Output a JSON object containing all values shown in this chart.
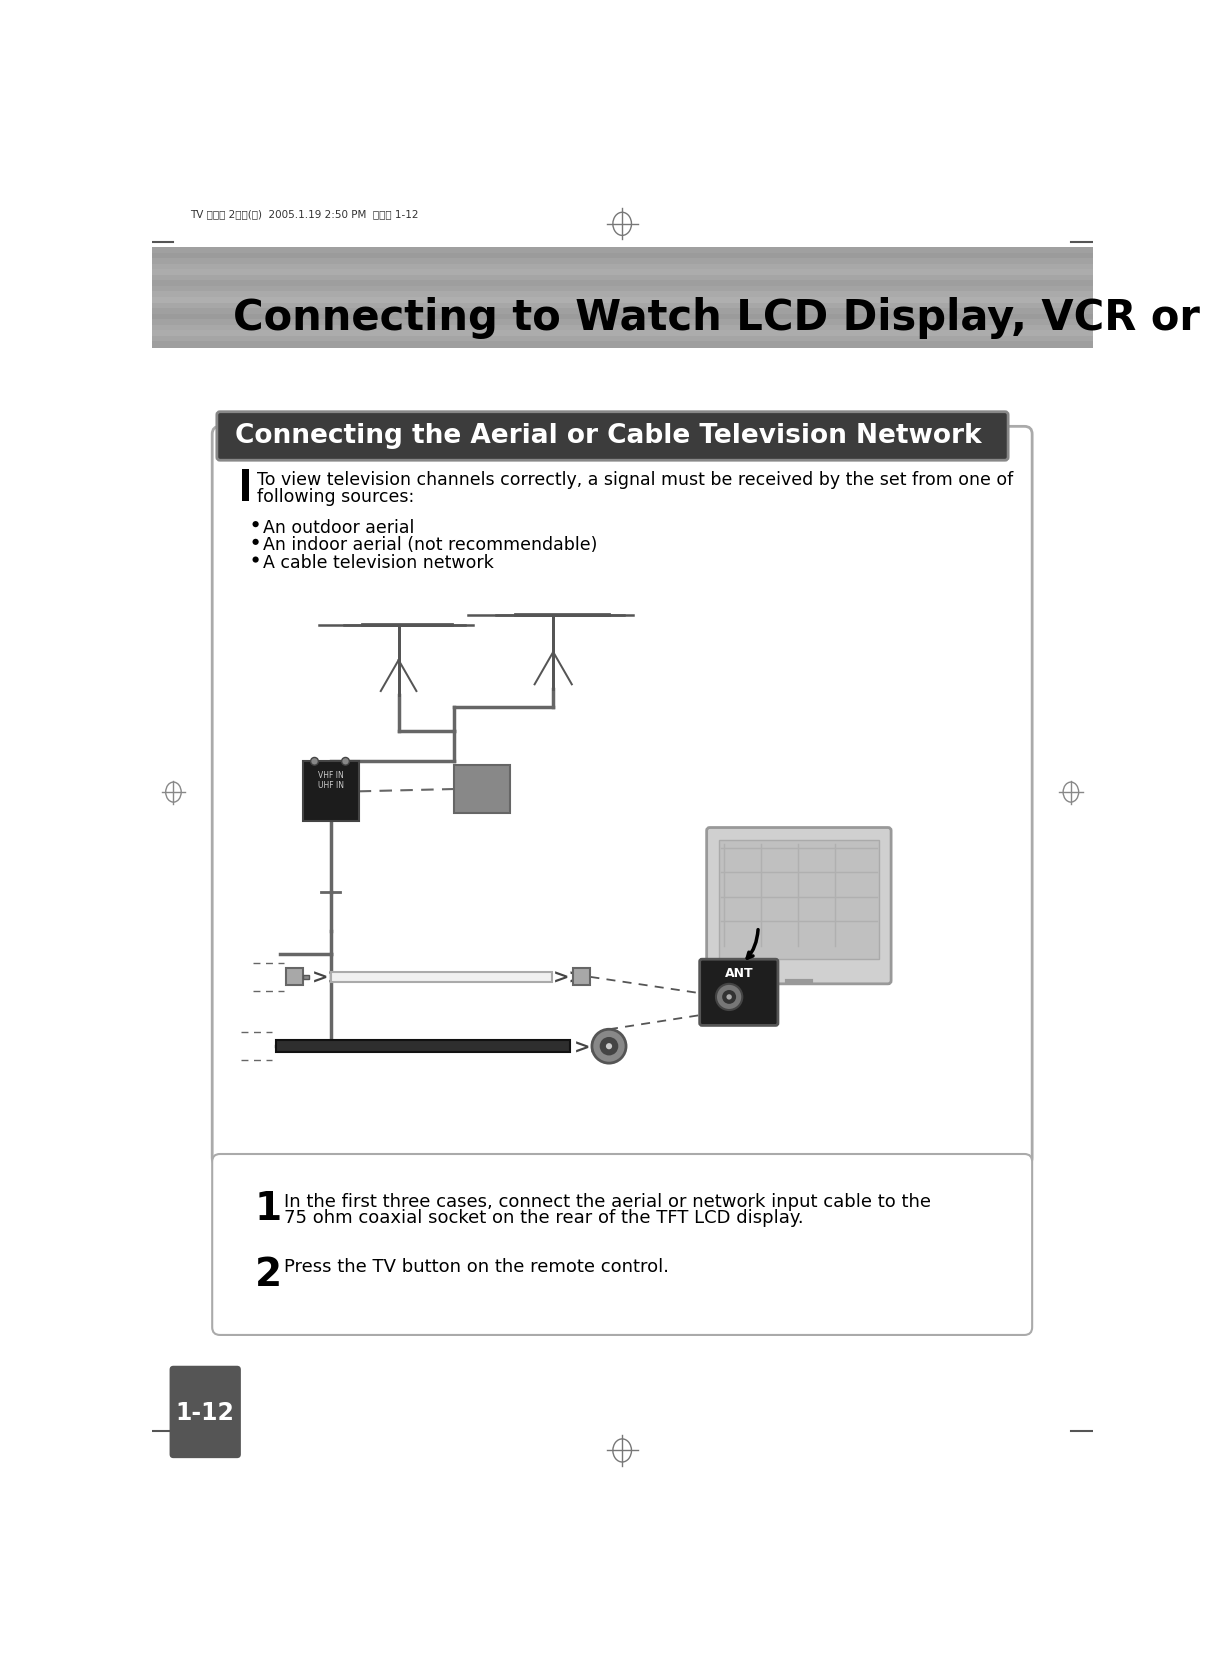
{
  "page_bg": "#ffffff",
  "header_text": "Connecting to Watch LCD Display, VCR or DVD",
  "header_font_size": 30,
  "small_header_text": "TV 매뉴얼 2요일(영)  2005.1.19 2:50 PM  페이지 1-12",
  "section_title": "Connecting the Aerial or Cable Television Network",
  "section_title_color": "#ffffff",
  "section_title_bg": "#3a3a3a",
  "section_title_font_size": 19,
  "body_text_line1": "To view television channels correctly, a signal must be received by the set from one of",
  "body_text_line2": "following sources:",
  "bullet1": "An outdoor aerial",
  "bullet2": "An indoor aerial (not recommendable)",
  "bullet3": "A cable television network",
  "step1_num": "1",
  "step1_text_line1": "In the first three cases, connect the aerial or network input cable to the",
  "step1_text_line2": "75 ohm coaxial socket on the rear of the TFT LCD display.",
  "step2_num": "2",
  "step2_text": "Press the TV button on the remote control.",
  "page_num": "1-12",
  "page_num_bg": "#555555",
  "page_num_color": "#ffffff",
  "stripe_colors": [
    "#aaaaaa",
    "#b8b8b8",
    "#c2c2c2",
    "#cccccc",
    "#c6c6c6",
    "#c0c0c0",
    "#bababa",
    "#c4c4c4",
    "#cececе",
    "#c8c8c8",
    "#c2c2c2",
    "#bcbcbc",
    "#b6b6b6",
    "#c0c0c0",
    "#cccccc"
  ],
  "main_box_border": "#999999",
  "instr_box_border": "#aaaaaa"
}
